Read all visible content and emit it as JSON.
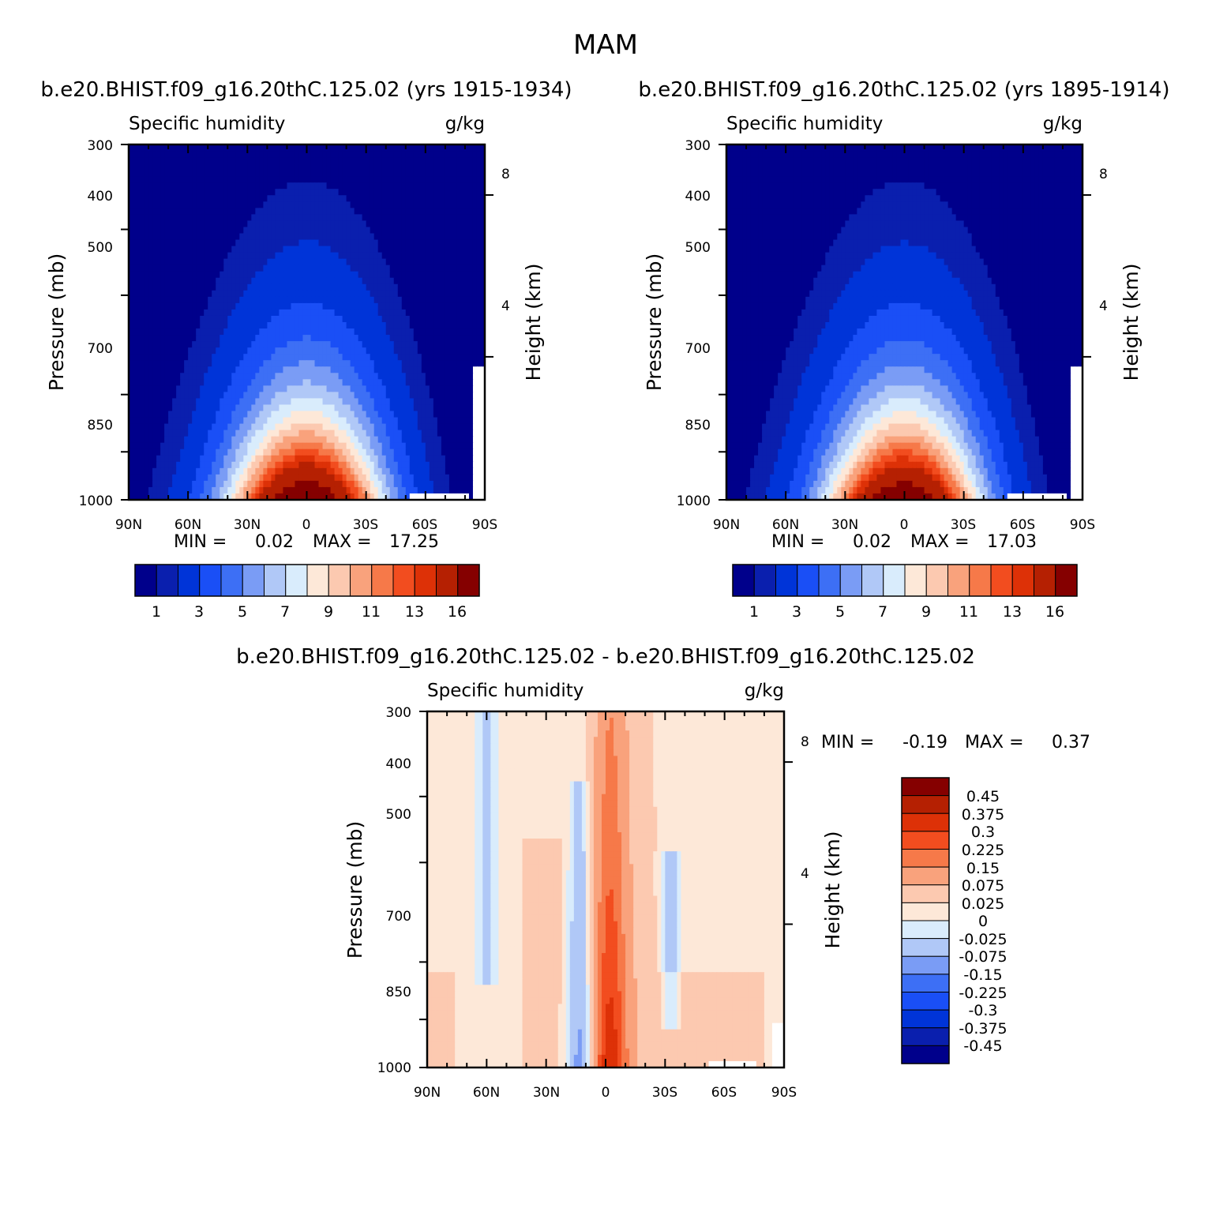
{
  "figure": {
    "title": "MAM"
  },
  "colors": {
    "abs_palette": [
      "#00008b",
      "#0a1fae",
      "#0034d8",
      "#1a4ff6",
      "#3d6ff5",
      "#7a9cf5",
      "#b0c8f7",
      "#d9ecfc",
      "#fde8d8",
      "#fcc9b0",
      "#f9a27c",
      "#f67949",
      "#f24d1f",
      "#dd3107",
      "#b52002",
      "#850000"
    ],
    "diff_palette": [
      "#00008b",
      "#0a1fae",
      "#0034d8",
      "#1a4ff6",
      "#3d6ff5",
      "#7a9cf5",
      "#b0c8f7",
      "#d9ecfc",
      "#fde8d8",
      "#fcc9b0",
      "#f9a27c",
      "#f67949",
      "#f24d1f",
      "#dd3107",
      "#b52002",
      "#850000"
    ],
    "missing": "#ffffff"
  },
  "chart_data": [
    {
      "id": "case1",
      "type": "heatmap",
      "title": "b.e20.BHIST.f09_g16.20thC.125.02 (yrs 1915-1934)",
      "left_label": "Specific humidity",
      "right_label": "g/kg",
      "ylabel": "Pressure (mb)",
      "ylabel_right": "Height (km)",
      "x_ticks": [
        "90N",
        "60N",
        "30N",
        "0",
        "30S",
        "60S",
        "90S"
      ],
      "y_ticks": [
        "300",
        "400",
        "500",
        "700",
        "850",
        "1000"
      ],
      "y_ticks_right": [
        "8",
        "4"
      ],
      "min_label": "MIN =",
      "min_value": "0.02",
      "max_label": "MAX =",
      "max_value": "17.25",
      "colorbar_labels": [
        "1",
        "3",
        "5",
        "7",
        "9",
        "11",
        "13",
        "16"
      ],
      "xlim": [
        90,
        -90
      ],
      "ylim": [
        1000,
        300
      ],
      "levels": [
        0.5,
        1,
        2,
        3,
        4,
        5,
        6,
        7,
        8,
        9,
        10,
        11,
        12,
        13,
        16
      ],
      "max": 17.25
    },
    {
      "id": "case2",
      "type": "heatmap",
      "title": "b.e20.BHIST.f09_g16.20thC.125.02 (yrs 1895-1914)",
      "left_label": "Specific humidity",
      "right_label": "g/kg",
      "ylabel": "Pressure (mb)",
      "ylabel_right": "Height (km)",
      "x_ticks": [
        "90N",
        "60N",
        "30N",
        "0",
        "30S",
        "60S",
        "90S"
      ],
      "y_ticks": [
        "300",
        "400",
        "500",
        "700",
        "850",
        "1000"
      ],
      "y_ticks_right": [
        "8",
        "4"
      ],
      "min_label": "MIN =",
      "min_value": "0.02",
      "max_label": "MAX =",
      "max_value": "17.03",
      "colorbar_labels": [
        "1",
        "3",
        "5",
        "7",
        "9",
        "11",
        "13",
        "16"
      ],
      "xlim": [
        90,
        -90
      ],
      "ylim": [
        1000,
        300
      ],
      "levels": [
        0.5,
        1,
        2,
        3,
        4,
        5,
        6,
        7,
        8,
        9,
        10,
        11,
        12,
        13,
        16
      ],
      "max": 17.03
    },
    {
      "id": "diff",
      "type": "heatmap",
      "title": "b.e20.BHIST.f09_g16.20thC.125.02 - b.e20.BHIST.f09_g16.20thC.125.02",
      "left_label": "Specific humidity",
      "right_label": "g/kg",
      "ylabel": "Pressure (mb)",
      "ylabel_right": "Height (km)",
      "x_ticks": [
        "90N",
        "60N",
        "30N",
        "0",
        "30S",
        "60S",
        "90S"
      ],
      "y_ticks": [
        "300",
        "400",
        "500",
        "700",
        "850",
        "1000"
      ],
      "y_ticks_right": [
        "8",
        "4"
      ],
      "min_label": "MIN =",
      "min_value": "-0.19",
      "max_label": "MAX =",
      "max_value": "0.37",
      "colorbar_labels": [
        "0.45",
        "0.375",
        "0.3",
        "0.225",
        "0.15",
        "0.075",
        "0.025",
        "0",
        "-0.025",
        "-0.075",
        "-0.15",
        "-0.225",
        "-0.3",
        "-0.375",
        "-0.45"
      ],
      "xlim": [
        90,
        -90
      ],
      "ylim": [
        1000,
        300
      ],
      "levels": [
        -0.45,
        -0.375,
        -0.3,
        -0.225,
        -0.15,
        -0.075,
        -0.025,
        0,
        0.025,
        0.075,
        0.15,
        0.225,
        0.3,
        0.375,
        0.45
      ],
      "min": -0.19,
      "max": 0.37
    }
  ]
}
